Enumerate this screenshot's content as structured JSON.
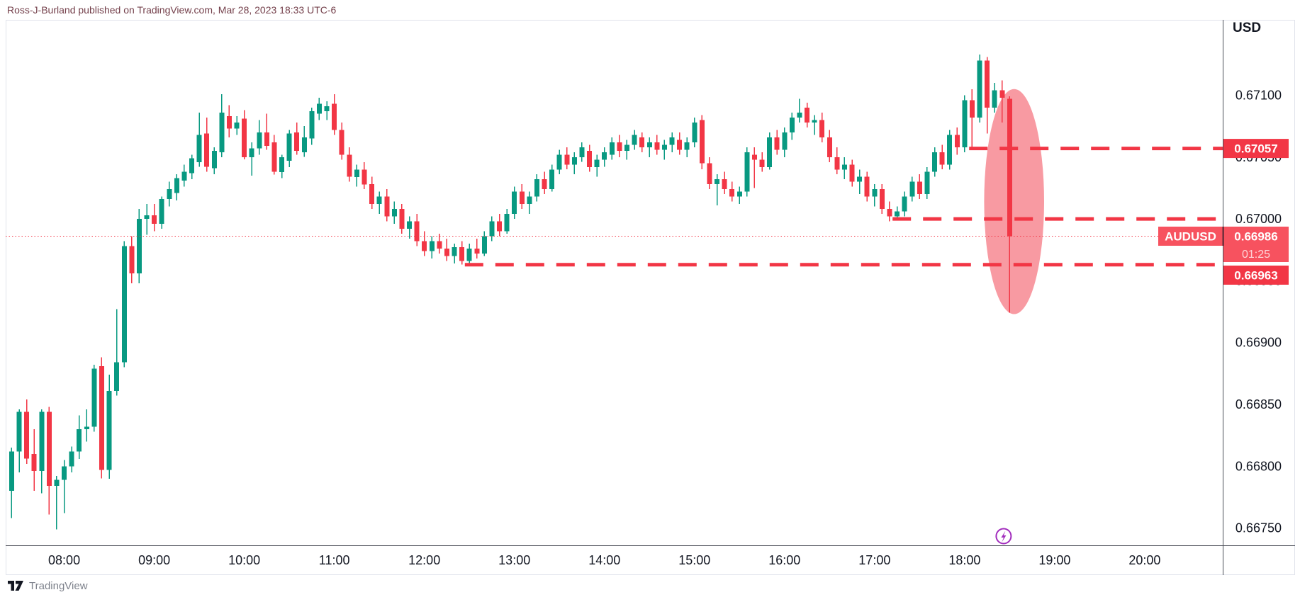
{
  "header": {
    "attribution": "Ross-J-Burland published on TradingView.com, Mar 28, 2023 18:33 UTC-6"
  },
  "watermark": {
    "logo_text": "TradingView"
  },
  "price_scale": {
    "currency_label": "USD",
    "ticks": [
      "0.67100",
      "0.67050",
      "0.67000",
      "0.66950",
      "0.66900",
      "0.66850",
      "0.66800",
      "0.66750"
    ]
  },
  "time_scale": {
    "ticks": [
      "08:00",
      "09:00",
      "10:00",
      "11:00",
      "12:00",
      "13:00",
      "14:00",
      "15:00",
      "16:00",
      "17:00",
      "18:00",
      "19:00",
      "20:00"
    ]
  },
  "colors": {
    "up": "#089981",
    "down": "#F23645",
    "level": "#F23645",
    "level_label_bg": "#F23645",
    "last_price_bg": "#F7525F",
    "countdown_text": "rgba(255,255,255,0.75)",
    "highlight": "rgba(242,54,69,0.5)",
    "axis_text": "#131722",
    "frame": "#E0E3EB",
    "axis_line": "#4A4D57",
    "marker": "#A22DBD",
    "logo_glyph": "#131722"
  },
  "chart_data": {
    "type": "candlestick",
    "symbol": "AUDUSD",
    "interval_minutes": 5,
    "title": "AUDUSD 5-minute candlestick chart",
    "price_divisor": 100000,
    "price_axis": {
      "min": 0.66736,
      "max": 0.67161,
      "tick_step": 0.0005,
      "tick_prices": [
        0.671,
        0.6705,
        0.67,
        0.6695,
        0.669,
        0.6685,
        0.668,
        0.6675
      ]
    },
    "time_axis": {
      "start": "07:21",
      "end": "20:52",
      "tick_times": [
        "08:00",
        "09:00",
        "10:00",
        "11:00",
        "12:00",
        "13:00",
        "14:00",
        "15:00",
        "16:00",
        "17:00",
        "18:00",
        "19:00",
        "20:00"
      ]
    },
    "grid": false,
    "levels": [
      {
        "price": 0.67057,
        "label": "0.67057",
        "from_time": "18:03"
      },
      {
        "price": 0.67,
        "label": "0.67000",
        "from_time": "17:12"
      },
      {
        "price": 0.66963,
        "label": "0.66963",
        "from_time": "12:27"
      }
    ],
    "current_price_line": {
      "price": 0.66986,
      "label": "0.66986",
      "symbol_label": "AUDUSD",
      "countdown": "01:25"
    },
    "highlight_ellipse": {
      "time": "18:33",
      "price": 0.67014,
      "rx_minutes": 20,
      "ry_price": 0.00091
    },
    "event_marker": {
      "time": "18:26",
      "icon": "lightning-circle-icon"
    },
    "candles": [
      [
        "07:25",
        66780,
        66815,
        66758,
        66812
      ],
      [
        "07:30",
        66812,
        66846,
        66795,
        66844
      ],
      [
        "07:35",
        66844,
        66854,
        66802,
        66806
      ],
      [
        "07:40",
        66810,
        66830,
        66780,
        66796
      ],
      [
        "07:45",
        66796,
        66846,
        66778,
        66844
      ],
      [
        "07:50",
        66844,
        66848,
        66761,
        66784
      ],
      [
        "07:55",
        66784,
        66792,
        66749,
        66789
      ],
      [
        "08:00",
        66789,
        66805,
        66762,
        66800
      ],
      [
        "08:05",
        66800,
        66816,
        66795,
        66812
      ],
      [
        "08:10",
        66812,
        66841,
        66806,
        66830
      ],
      [
        "08:15",
        66830,
        66846,
        66820,
        66832
      ],
      [
        "08:20",
        66832,
        66882,
        66828,
        66879
      ],
      [
        "08:25",
        66881,
        66888,
        66790,
        66797
      ],
      [
        "08:30",
        66797,
        66874,
        66790,
        66861
      ],
      [
        "08:35",
        66861,
        66927,
        66857,
        66884
      ],
      [
        "08:40",
        66884,
        66982,
        66880,
        66978
      ],
      [
        "08:45",
        66978,
        66986,
        66948,
        66956
      ],
      [
        "08:50",
        66956,
        67008,
        66948,
        67000
      ],
      [
        "08:55",
        67000,
        67012,
        66987,
        67003
      ],
      [
        "09:00",
        67003,
        67012,
        66990,
        66996
      ],
      [
        "09:05",
        66996,
        67018,
        66992,
        67016
      ],
      [
        "09:10",
        67016,
        67030,
        67010,
        67024
      ],
      [
        "09:15",
        67021,
        67036,
        67015,
        67033
      ],
      [
        "09:20",
        67031,
        67044,
        67026,
        67038
      ],
      [
        "09:25",
        67037,
        67052,
        67032,
        67049
      ],
      [
        "09:30",
        67046,
        67086,
        67042,
        67068
      ],
      [
        "09:35",
        67069,
        67082,
        67038,
        67042
      ],
      [
        "09:40",
        67041,
        67058,
        67036,
        67055
      ],
      [
        "09:45",
        67054,
        67101,
        67050,
        67086
      ],
      [
        "09:50",
        67083,
        67092,
        67066,
        67073
      ],
      [
        "09:55",
        67073,
        67083,
        67068,
        67078
      ],
      [
        "10:00",
        67081,
        67088,
        67048,
        67050
      ],
      [
        "10:05",
        67050,
        67062,
        67035,
        67057
      ],
      [
        "10:10",
        67057,
        67080,
        67052,
        67070
      ],
      [
        "10:15",
        67070,
        67085,
        67056,
        67059
      ],
      [
        "10:20",
        67062,
        67068,
        67036,
        67038
      ],
      [
        "10:25",
        67038,
        67052,
        67033,
        67050
      ],
      [
        "10:30",
        67047,
        67072,
        67042,
        67069
      ],
      [
        "10:35",
        67070,
        67078,
        67052,
        67055
      ],
      [
        "10:40",
        67054,
        67075,
        67050,
        67066
      ],
      [
        "10:45",
        67065,
        67090,
        67060,
        67087
      ],
      [
        "10:50",
        67085,
        67098,
        67080,
        67093
      ],
      [
        "10:55",
        67087,
        67095,
        67080,
        67091
      ],
      [
        "11:00",
        67093,
        67101,
        67068,
        67072
      ],
      [
        "11:05",
        67072,
        67078,
        67048,
        67052
      ],
      [
        "11:10",
        67052,
        67058,
        67030,
        67034
      ],
      [
        "11:15",
        67034,
        67044,
        67026,
        67040
      ],
      [
        "11:20",
        67040,
        67046,
        67024,
        67028
      ],
      [
        "11:25",
        67028,
        67034,
        67008,
        67012
      ],
      [
        "11:30",
        67012,
        67022,
        67004,
        67018
      ],
      [
        "11:35",
        67018,
        67024,
        66998,
        67002
      ],
      [
        "11:40",
        67002,
        67014,
        66996,
        67008
      ],
      [
        "11:45",
        67008,
        67012,
        66988,
        66992
      ],
      [
        "11:50",
        66992,
        67002,
        66984,
        66998
      ],
      [
        "11:55",
        66998,
        67004,
        66978,
        66982
      ],
      [
        "12:00",
        66982,
        66990,
        66970,
        66974
      ],
      [
        "12:05",
        66974,
        66986,
        66968,
        66982
      ],
      [
        "12:10",
        66982,
        66988,
        66972,
        66976
      ],
      [
        "12:15",
        66976,
        66984,
        66966,
        66970
      ],
      [
        "12:20",
        66970,
        66980,
        66964,
        66977
      ],
      [
        "12:25",
        66977,
        66982,
        66963,
        66966
      ],
      [
        "12:30",
        66966,
        66980,
        66963,
        66976
      ],
      [
        "12:35",
        66976,
        66984,
        66968,
        66972
      ],
      [
        "12:40",
        66972,
        66990,
        66970,
        66986
      ],
      [
        "12:45",
        66986,
        67002,
        66982,
        66998
      ],
      [
        "12:50",
        66998,
        67004,
        66986,
        66990
      ],
      [
        "12:55",
        66990,
        67008,
        66988,
        67004
      ],
      [
        "13:00",
        67004,
        67026,
        67000,
        67022
      ],
      [
        "13:05",
        67022,
        67028,
        67008,
        67012
      ],
      [
        "13:10",
        67012,
        67022,
        67004,
        67018
      ],
      [
        "13:15",
        67018,
        67036,
        67014,
        67032
      ],
      [
        "13:20",
        67032,
        67038,
        67020,
        67024
      ],
      [
        "13:25",
        67024,
        67044,
        67022,
        67040
      ],
      [
        "13:30",
        67040,
        67056,
        67036,
        67052
      ],
      [
        "13:35",
        67052,
        67058,
        67040,
        67044
      ],
      [
        "13:40",
        67044,
        67054,
        67036,
        67050
      ],
      [
        "13:45",
        67050,
        67062,
        67046,
        67058
      ],
      [
        "13:50",
        67055,
        67060,
        67038,
        67042
      ],
      [
        "13:55",
        67042,
        67052,
        67034,
        67048
      ],
      [
        "14:00",
        67048,
        67058,
        67042,
        67054
      ],
      [
        "14:05",
        67052,
        67066,
        67048,
        67062
      ],
      [
        "14:10",
        67062,
        67068,
        67050,
        67055
      ],
      [
        "14:15",
        67055,
        67064,
        67048,
        67060
      ],
      [
        "14:20",
        67060,
        67072,
        67056,
        67068
      ],
      [
        "14:25",
        67066,
        67070,
        67054,
        67058
      ],
      [
        "14:30",
        67058,
        67066,
        67050,
        67062
      ],
      [
        "14:35",
        67062,
        67068,
        67052,
        67056
      ],
      [
        "14:40",
        67056,
        67064,
        67048,
        67060
      ],
      [
        "14:45",
        67060,
        67070,
        67054,
        67066
      ],
      [
        "14:50",
        67064,
        67070,
        67052,
        67056
      ],
      [
        "14:55",
        67056,
        67066,
        67050,
        67062
      ],
      [
        "15:00",
        67062,
        67082,
        67058,
        67078
      ],
      [
        "15:05",
        67080,
        67084,
        67040,
        67045
      ],
      [
        "15:10",
        67045,
        67050,
        67024,
        67028
      ],
      [
        "15:15",
        67028,
        67036,
        67011,
        67032
      ],
      [
        "15:20",
        67032,
        67038,
        67020,
        67024
      ],
      [
        "15:25",
        67024,
        67030,
        67014,
        67018
      ],
      [
        "15:30",
        67018,
        67026,
        67012,
        67022
      ],
      [
        "15:35",
        67022,
        67058,
        67018,
        67054
      ],
      [
        "15:40",
        67052,
        67058,
        67025,
        67048
      ],
      [
        "15:45",
        67048,
        67054,
        67038,
        67042
      ],
      [
        "15:50",
        67042,
        67070,
        67040,
        67066
      ],
      [
        "15:55",
        67066,
        67072,
        67052,
        67056
      ],
      [
        "16:00",
        67056,
        67074,
        67050,
        67070
      ],
      [
        "16:05",
        67070,
        67086,
        67064,
        67082
      ],
      [
        "16:10",
        67082,
        67097,
        67078,
        67086
      ],
      [
        "16:15",
        67090,
        67094,
        67074,
        67078
      ],
      [
        "16:20",
        67078,
        67084,
        67068,
        67080
      ],
      [
        "16:25",
        67080,
        67086,
        67062,
        67066
      ],
      [
        "16:30",
        67066,
        67072,
        67046,
        67050
      ],
      [
        "16:35",
        67050,
        67058,
        67036,
        67040
      ],
      [
        "16:40",
        67040,
        67050,
        67032,
        67044
      ],
      [
        "16:45",
        67044,
        67048,
        67026,
        67030
      ],
      [
        "16:50",
        67030,
        67040,
        67020,
        67034
      ],
      [
        "16:55",
        67034,
        67038,
        67014,
        67018
      ],
      [
        "17:00",
        67018,
        67028,
        67010,
        67024
      ],
      [
        "17:05",
        67024,
        67028,
        67004,
        67008
      ],
      [
        "17:10",
        67008,
        67014,
        66998,
        67002
      ],
      [
        "17:15",
        67002,
        67010,
        66999,
        67006
      ],
      [
        "17:20",
        67006,
        67022,
        67002,
        67018
      ],
      [
        "17:25",
        67018,
        67034,
        67014,
        67030
      ],
      [
        "17:30",
        67030,
        67036,
        67016,
        67020
      ],
      [
        "17:35",
        67020,
        67042,
        67016,
        67038
      ],
      [
        "17:40",
        67038,
        67058,
        67034,
        67054
      ],
      [
        "17:45",
        67054,
        67060,
        67040,
        67044
      ],
      [
        "17:50",
        67044,
        67072,
        67040,
        67068
      ],
      [
        "17:55",
        67068,
        67074,
        67052,
        67058
      ],
      [
        "18:00",
        67058,
        67100,
        67054,
        67096
      ],
      [
        "18:05",
        67096,
        67105,
        67057,
        67082
      ],
      [
        "18:10",
        67082,
        67133,
        67078,
        67128
      ],
      [
        "18:15",
        67128,
        67131,
        67069,
        67090
      ],
      [
        "18:20",
        67090,
        67110,
        67086,
        67104
      ],
      [
        "18:25",
        67104,
        67112,
        67078,
        67098
      ],
      [
        "18:30",
        67097,
        67099,
        66924,
        66986
      ]
    ]
  }
}
